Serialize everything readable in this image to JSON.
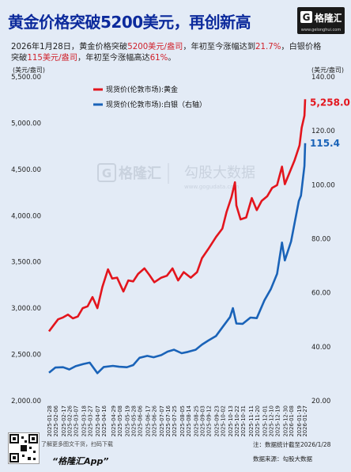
{
  "header": {
    "title": "黄金价格突破5200美元，再创新高",
    "brand_logo_text": "格隆汇",
    "brand_site": "www.gelonghui.com"
  },
  "subtitle": {
    "p1": "2026年1月28日，黄金价格突破",
    "p2": "5200美元/盎司",
    "p3": "，年初至今涨幅达到",
    "p4": "21.7%",
    "p5": "，白银价格",
    "p6": "突破",
    "p7": "115美元/盎司",
    "p8": "，年初至今涨幅高达",
    "p9": "61%",
    "p10": "。"
  },
  "watermark": {
    "brand": "格隆汇",
    "cn": "勾股大数据",
    "url": "www.gogudata.com"
  },
  "footer": {
    "note": "了解更多图文干货，扫码下载",
    "app": "“格隆汇App”",
    "source_date": "注：数据统计截至2026/1/28",
    "source": "数据来源：勾股大数据"
  },
  "chart_data": {
    "type": "line",
    "left_axis_unit": "(美元/盎司)",
    "right_axis_unit": "(美元/盎司)",
    "y_left": {
      "min": 2000,
      "max": 5500,
      "ticks": [
        "5,500.00",
        "5,000.00",
        "4,500.00",
        "4,000.00",
        "3,500.00",
        "3,000.00",
        "2,500.00",
        "2,000.00"
      ]
    },
    "y_right": {
      "min": 20,
      "max": 140,
      "ticks": [
        "140.00",
        "120.00",
        "100.00",
        "80.00",
        "60.00",
        "40.00",
        "20.00"
      ]
    },
    "x_start": "2025-01-28",
    "x_end": "2026-01-28",
    "x_ticks": [
      "2025-01-28",
      "2025-02-06",
      "2025-02-17",
      "2025-02-26",
      "2025-03-07",
      "2025-03-18",
      "2025-03-27",
      "2025-04-07",
      "2025-04-16",
      "2025-04-29",
      "2025-05-08",
      "2025-05-19",
      "2025-05-28",
      "2025-06-06",
      "2025-06-17",
      "2025-06-26",
      "2025-07-07",
      "2025-07-16",
      "2025-07-25",
      "2025-08-05",
      "2025-08-14",
      "2025-08-25",
      "2025-09-03",
      "2025-09-12",
      "2025-09-23",
      "2025-10-02",
      "2025-10-13",
      "2025-10-22",
      "2025-10-31",
      "2025-11-11",
      "2025-11-20",
      "2025-12-01",
      "2025-12-10",
      "2025-12-19",
      "2025-12-30",
      "2026-01-08",
      "2026-01-19",
      "2026-01-27"
    ],
    "series": [
      {
        "name": "现货价(伦敦市场):黄金",
        "axis": "left",
        "color": "#e3151d",
        "end_label": "5,258.0",
        "points": [
          [
            "2025-01-28",
            2750
          ],
          [
            "2025-02-03",
            2810
          ],
          [
            "2025-02-10",
            2880
          ],
          [
            "2025-02-17",
            2900
          ],
          [
            "2025-02-24",
            2930
          ],
          [
            "2025-03-03",
            2890
          ],
          [
            "2025-03-10",
            2910
          ],
          [
            "2025-03-17",
            3000
          ],
          [
            "2025-03-24",
            3020
          ],
          [
            "2025-03-31",
            3120
          ],
          [
            "2025-04-07",
            3000
          ],
          [
            "2025-04-14",
            3230
          ],
          [
            "2025-04-22",
            3420
          ],
          [
            "2025-04-28",
            3320
          ],
          [
            "2025-05-05",
            3330
          ],
          [
            "2025-05-14",
            3180
          ],
          [
            "2025-05-21",
            3300
          ],
          [
            "2025-05-28",
            3290
          ],
          [
            "2025-06-04",
            3370
          ],
          [
            "2025-06-13",
            3430
          ],
          [
            "2025-06-20",
            3360
          ],
          [
            "2025-06-27",
            3280
          ],
          [
            "2025-07-07",
            3330
          ],
          [
            "2025-07-15",
            3350
          ],
          [
            "2025-07-23",
            3430
          ],
          [
            "2025-07-31",
            3300
          ],
          [
            "2025-08-08",
            3390
          ],
          [
            "2025-08-18",
            3330
          ],
          [
            "2025-08-27",
            3390
          ],
          [
            "2025-09-03",
            3540
          ],
          [
            "2025-09-12",
            3640
          ],
          [
            "2025-09-23",
            3770
          ],
          [
            "2025-10-02",
            3860
          ],
          [
            "2025-10-08",
            4040
          ],
          [
            "2025-10-15",
            4200
          ],
          [
            "2025-10-20",
            4360
          ],
          [
            "2025-10-22",
            4110
          ],
          [
            "2025-10-28",
            3960
          ],
          [
            "2025-11-05",
            3980
          ],
          [
            "2025-11-13",
            4190
          ],
          [
            "2025-11-20",
            4060
          ],
          [
            "2025-11-27",
            4160
          ],
          [
            "2025-12-05",
            4210
          ],
          [
            "2025-12-12",
            4300
          ],
          [
            "2025-12-19",
            4330
          ],
          [
            "2025-12-26",
            4530
          ],
          [
            "2025-12-30",
            4340
          ],
          [
            "2026-01-06",
            4470
          ],
          [
            "2026-01-13",
            4600
          ],
          [
            "2026-01-20",
            4760
          ],
          [
            "2026-01-23",
            4950
          ],
          [
            "2026-01-27",
            5080
          ],
          [
            "2026-01-28",
            5258
          ]
        ]
      },
      {
        "name": "现货价(伦敦市场):白银（右轴）",
        "axis": "right",
        "color": "#1a63b8",
        "end_label": "115.4",
        "points": [
          [
            "2025-01-28",
            30.4
          ],
          [
            "2025-02-06",
            32.3
          ],
          [
            "2025-02-17",
            32.4
          ],
          [
            "2025-02-26",
            31.6
          ],
          [
            "2025-03-07",
            32.8
          ],
          [
            "2025-03-18",
            33.6
          ],
          [
            "2025-03-27",
            34.1
          ],
          [
            "2025-04-07",
            30.2
          ],
          [
            "2025-04-16",
            32.5
          ],
          [
            "2025-04-29",
            32.9
          ],
          [
            "2025-05-08",
            32.6
          ],
          [
            "2025-05-19",
            32.4
          ],
          [
            "2025-05-28",
            33.2
          ],
          [
            "2025-06-06",
            35.9
          ],
          [
            "2025-06-17",
            36.6
          ],
          [
            "2025-06-26",
            36.1
          ],
          [
            "2025-07-07",
            36.9
          ],
          [
            "2025-07-16",
            38.2
          ],
          [
            "2025-07-25",
            38.9
          ],
          [
            "2025-08-05",
            37.6
          ],
          [
            "2025-08-14",
            38.1
          ],
          [
            "2025-08-25",
            38.9
          ],
          [
            "2025-09-03",
            40.8
          ],
          [
            "2025-09-12",
            42.3
          ],
          [
            "2025-09-23",
            44.0
          ],
          [
            "2025-10-02",
            47.2
          ],
          [
            "2025-10-13",
            51.0
          ],
          [
            "2025-10-17",
            54.3
          ],
          [
            "2025-10-22",
            48.6
          ],
          [
            "2025-10-31",
            48.5
          ],
          [
            "2025-11-11",
            50.8
          ],
          [
            "2025-11-20",
            50.6
          ],
          [
            "2025-12-01",
            57.2
          ],
          [
            "2025-12-10",
            61.3
          ],
          [
            "2025-12-19",
            67.0
          ],
          [
            "2025-12-26",
            78.6
          ],
          [
            "2025-12-30",
            72.0
          ],
          [
            "2026-01-08",
            79.0
          ],
          [
            "2026-01-19",
            94.0
          ],
          [
            "2026-01-22",
            96.0
          ],
          [
            "2026-01-27",
            107.0
          ],
          [
            "2026-01-28",
            115.4
          ]
        ]
      }
    ],
    "legend_position": "top-left",
    "grid": false
  }
}
